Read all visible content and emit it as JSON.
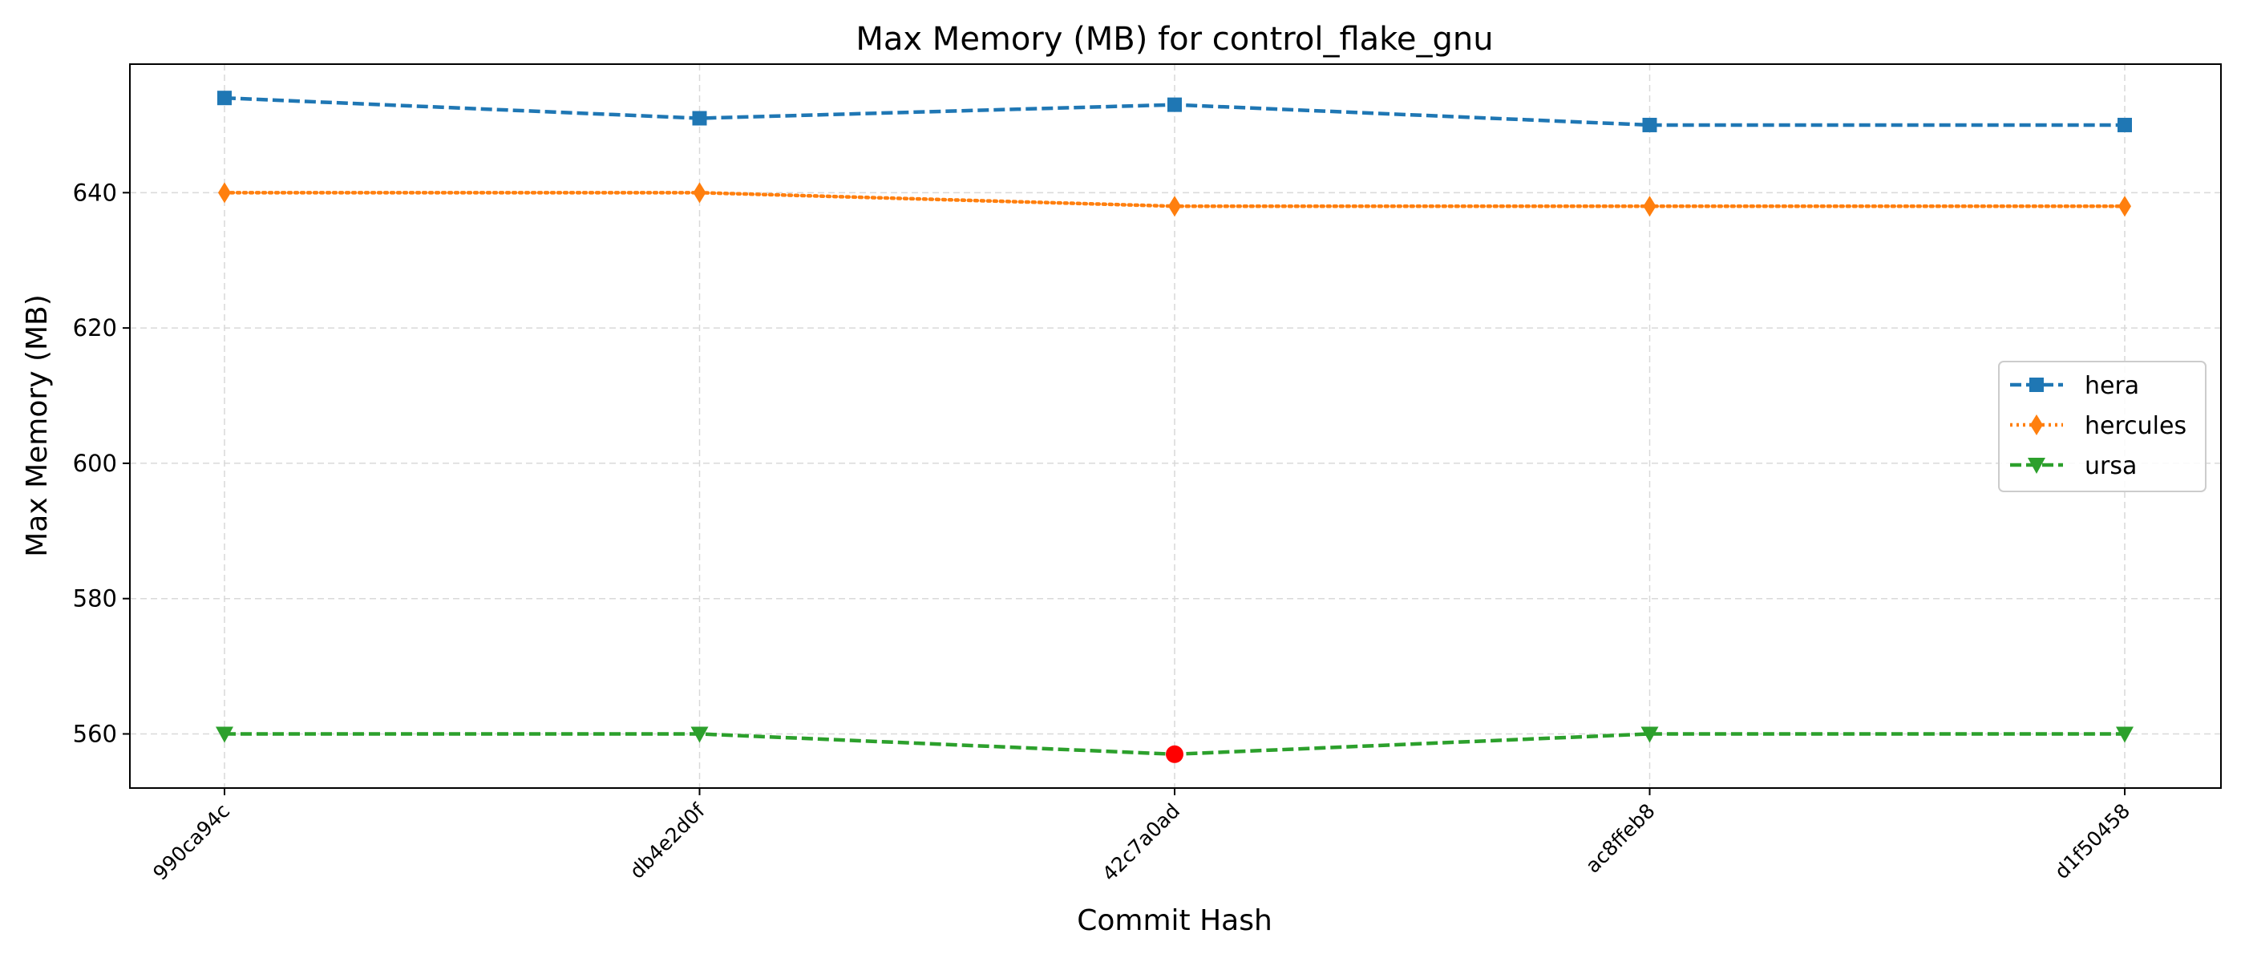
{
  "chart_data": {
    "type": "line",
    "title": "Max Memory (MB) for control_flake_gnu",
    "xlabel": "Commit Hash",
    "ylabel": "Max Memory (MB)",
    "categories": [
      "990ca94c",
      "db4e2d0f",
      "42c7a0ad",
      "ac8ffeb8",
      "d1f50458"
    ],
    "yticks": [
      560,
      580,
      600,
      620,
      640
    ],
    "ylim": [
      552,
      659
    ],
    "grid": true,
    "legend_position": "right",
    "series": [
      {
        "name": "hera",
        "values": [
          654,
          651,
          653,
          650,
          650
        ],
        "color": "#1f77b4",
        "marker": "square",
        "linestyle": "dashed"
      },
      {
        "name": "hercules",
        "values": [
          640,
          640,
          638,
          638,
          638
        ],
        "color": "#ff7f0e",
        "marker": "thin-diamond",
        "linestyle": "dotted"
      },
      {
        "name": "ursa",
        "values": [
          560,
          560,
          557,
          560,
          560
        ],
        "color": "#2ca02c",
        "marker": "triangle-down",
        "linestyle": "dashed"
      }
    ],
    "highlight": {
      "series": "ursa",
      "category": "42c7a0ad",
      "value": 557,
      "color": "#ff0000",
      "marker": "circle"
    }
  }
}
